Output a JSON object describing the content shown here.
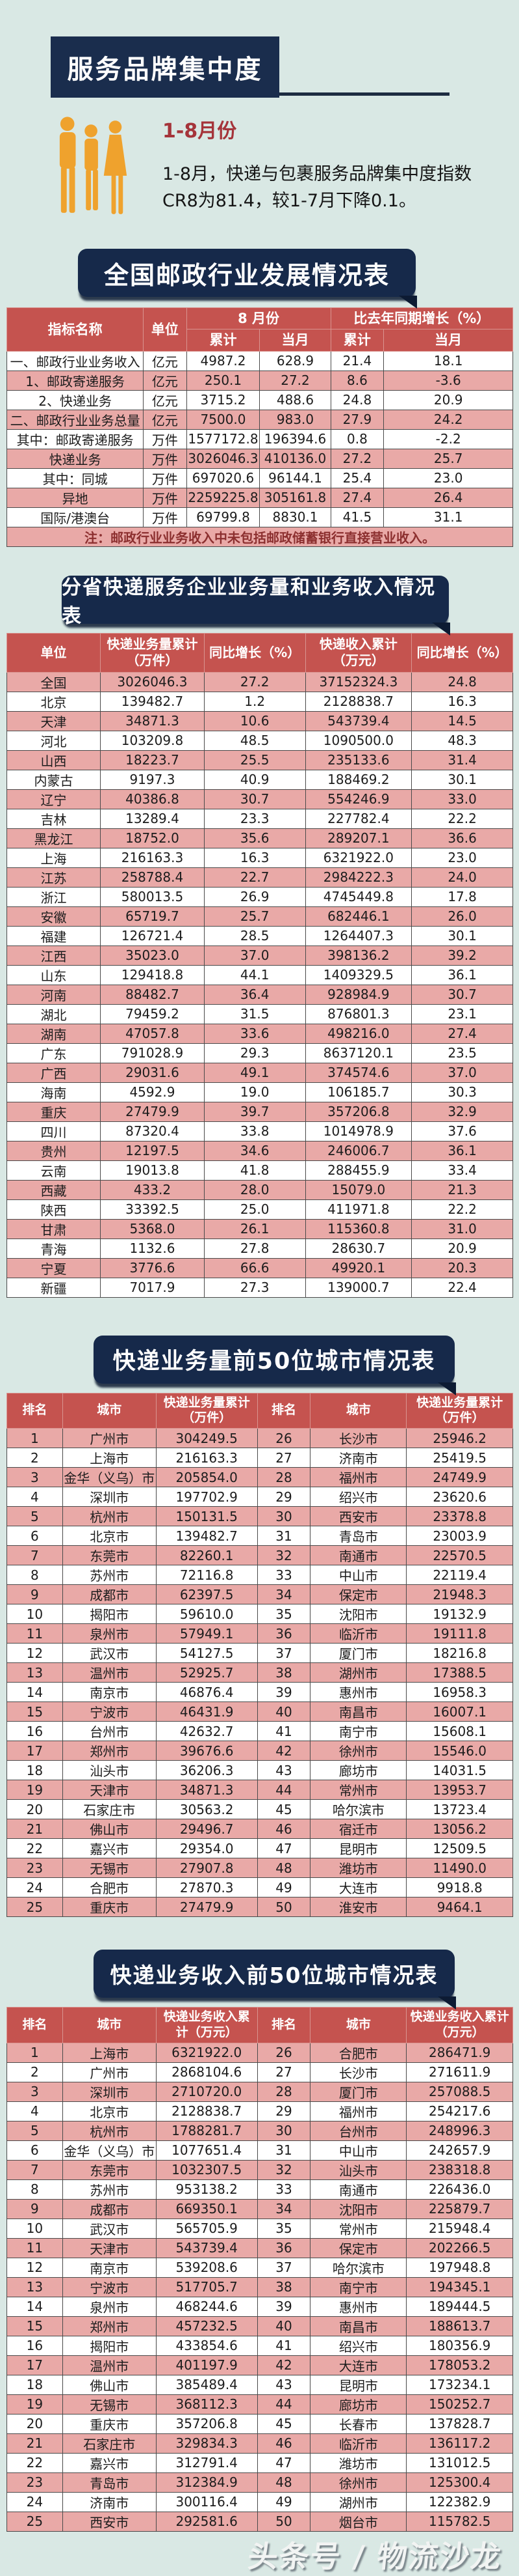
{
  "page": {
    "title": "服务品牌集中度",
    "watermark": "头条号 / 物流沙龙"
  },
  "intro": {
    "period_label": "1-8月份",
    "description": "1-8月，快递与包裹服务品牌集中度指数CR8为81.4，较1-7月下降0.1。"
  },
  "colors": {
    "background": "#d9e8e4",
    "navy": "#1a2d4d",
    "banner_navy": "#16294a",
    "table_header_red": "#c5534f",
    "row_pink": "#e9a9a7",
    "accent_orange": "#efa22d",
    "period_red": "#a5343a",
    "note_red": "#8c2f2f"
  },
  "national_table": {
    "title": "全国邮政行业发展情况表",
    "header": {
      "indicator": "指标名称",
      "unit": "单位",
      "august": "8 月份",
      "yoy": "比去年同期增长（%）",
      "cumulative": "累计",
      "month": "当月"
    },
    "rows": [
      [
        "一、邮政行业业务收入",
        "亿元",
        "4987.2",
        "628.9",
        "21.4",
        "18.1"
      ],
      [
        "1、邮政寄递服务",
        "亿元",
        "250.1",
        "27.2",
        "8.6",
        "-3.6"
      ],
      [
        "2、快递业务",
        "亿元",
        "3715.2",
        "488.6",
        "24.8",
        "20.9"
      ],
      [
        "二、邮政行业业务总量",
        "亿元",
        "7500.0",
        "983.0",
        "27.9",
        "24.2"
      ],
      [
        "其中：邮政寄递服务",
        "万件",
        "1577172.8",
        "196394.6",
        "0.8",
        "-2.2"
      ],
      [
        "快递业务",
        "万件",
        "3026046.3",
        "410136.0",
        "27.2",
        "25.7"
      ],
      [
        "其中：同城",
        "万件",
        "697020.6",
        "96144.1",
        "25.4",
        "23.0"
      ],
      [
        "异地",
        "万件",
        "2259225.8",
        "305161.8",
        "27.4",
        "26.4"
      ],
      [
        "国际/港澳台",
        "万件",
        "69799.8",
        "8830.1",
        "41.5",
        "31.1"
      ]
    ],
    "note": "注：邮政行业业务收入中未包括邮政储蓄银行直接营业收入。"
  },
  "province_table": {
    "title": "分省快递服务企业业务量和业务收入情况表",
    "header": [
      "单位",
      "快递业务量累计（万件）",
      "同比增长（%）",
      "快递收入累计（万元）",
      "同比增长（%）"
    ],
    "rows": [
      [
        "全国",
        "3026046.3",
        "27.2",
        "37152324.3",
        "24.8"
      ],
      [
        "北京",
        "139482.7",
        "1.2",
        "2128838.7",
        "16.3"
      ],
      [
        "天津",
        "34871.3",
        "10.6",
        "543739.4",
        "14.5"
      ],
      [
        "河北",
        "103209.8",
        "48.5",
        "1090500.0",
        "48.3"
      ],
      [
        "山西",
        "18223.7",
        "25.5",
        "235133.6",
        "31.4"
      ],
      [
        "内蒙古",
        "9197.3",
        "40.9",
        "188469.2",
        "30.1"
      ],
      [
        "辽宁",
        "40386.8",
        "30.7",
        "554246.9",
        "33.0"
      ],
      [
        "吉林",
        "13289.4",
        "23.3",
        "227782.4",
        "22.2"
      ],
      [
        "黑龙江",
        "18752.0",
        "35.6",
        "289207.1",
        "36.6"
      ],
      [
        "上海",
        "216163.3",
        "16.3",
        "6321922.0",
        "23.0"
      ],
      [
        "江苏",
        "258788.4",
        "22.7",
        "2984222.3",
        "24.0"
      ],
      [
        "浙江",
        "580013.5",
        "26.9",
        "4745449.8",
        "17.8"
      ],
      [
        "安徽",
        "65719.7",
        "25.7",
        "682446.1",
        "26.0"
      ],
      [
        "福建",
        "126721.4",
        "28.5",
        "1264407.3",
        "30.1"
      ],
      [
        "江西",
        "35023.0",
        "37.0",
        "398136.2",
        "39.2"
      ],
      [
        "山东",
        "129418.8",
        "44.1",
        "1409329.5",
        "36.1"
      ],
      [
        "河南",
        "88482.7",
        "36.4",
        "928984.9",
        "30.7"
      ],
      [
        "湖北",
        "79459.2",
        "31.5",
        "876801.3",
        "23.1"
      ],
      [
        "湖南",
        "47057.8",
        "33.6",
        "498216.0",
        "27.4"
      ],
      [
        "广东",
        "791028.9",
        "29.3",
        "8637120.1",
        "23.5"
      ],
      [
        "广西",
        "29031.6",
        "49.1",
        "374574.6",
        "37.0"
      ],
      [
        "海南",
        "4592.9",
        "19.0",
        "106185.7",
        "30.3"
      ],
      [
        "重庆",
        "27479.9",
        "39.7",
        "357206.8",
        "32.9"
      ],
      [
        "四川",
        "87320.4",
        "33.8",
        "1014978.9",
        "37.6"
      ],
      [
        "贵州",
        "12197.5",
        "34.6",
        "246006.7",
        "36.1"
      ],
      [
        "云南",
        "19013.8",
        "41.8",
        "288455.9",
        "33.4"
      ],
      [
        "西藏",
        "433.2",
        "28.0",
        "15079.0",
        "21.3"
      ],
      [
        "陕西",
        "33392.5",
        "25.0",
        "411971.8",
        "22.2"
      ],
      [
        "甘肃",
        "5368.0",
        "26.1",
        "115360.8",
        "31.0"
      ],
      [
        "青海",
        "1132.6",
        "27.8",
        "28630.7",
        "20.9"
      ],
      [
        "宁夏",
        "3776.6",
        "66.6",
        "49920.1",
        "20.3"
      ],
      [
        "新疆",
        "7017.9",
        "27.3",
        "139000.7",
        "22.4"
      ]
    ]
  },
  "volume_table": {
    "title": "快递业务量前50位城市情况表",
    "header": [
      "排名",
      "城市",
      "快递业务量累计（万件）",
      "排名",
      "城市",
      "快递业务量累计（万件）"
    ],
    "rows": [
      [
        "1",
        "广州市",
        "304249.5",
        "26",
        "长沙市",
        "25946.2"
      ],
      [
        "2",
        "上海市",
        "216163.3",
        "27",
        "济南市",
        "25419.5"
      ],
      [
        "3",
        "金华（义乌）市",
        "205854.0",
        "28",
        "福州市",
        "24749.9"
      ],
      [
        "4",
        "深圳市",
        "197702.9",
        "29",
        "绍兴市",
        "23620.6"
      ],
      [
        "5",
        "杭州市",
        "150131.5",
        "30",
        "西安市",
        "23378.8"
      ],
      [
        "6",
        "北京市",
        "139482.7",
        "31",
        "青岛市",
        "23003.9"
      ],
      [
        "7",
        "东莞市",
        "82260.1",
        "32",
        "南通市",
        "22570.5"
      ],
      [
        "8",
        "苏州市",
        "72116.8",
        "33",
        "中山市",
        "22119.4"
      ],
      [
        "9",
        "成都市",
        "62397.5",
        "34",
        "保定市",
        "21948.3"
      ],
      [
        "10",
        "揭阳市",
        "59610.0",
        "35",
        "沈阳市",
        "19132.9"
      ],
      [
        "11",
        "泉州市",
        "57949.1",
        "36",
        "临沂市",
        "19111.8"
      ],
      [
        "12",
        "武汉市",
        "54127.5",
        "37",
        "厦门市",
        "18216.8"
      ],
      [
        "13",
        "温州市",
        "52925.7",
        "38",
        "湖州市",
        "17388.5"
      ],
      [
        "14",
        "南京市",
        "46876.4",
        "39",
        "惠州市",
        "16958.3"
      ],
      [
        "15",
        "宁波市",
        "46431.9",
        "40",
        "南昌市",
        "16007.1"
      ],
      [
        "16",
        "台州市",
        "42632.7",
        "41",
        "南宁市",
        "15608.1"
      ],
      [
        "17",
        "郑州市",
        "39676.6",
        "42",
        "徐州市",
        "15546.0"
      ],
      [
        "18",
        "汕头市",
        "36206.3",
        "43",
        "廊坊市",
        "14031.5"
      ],
      [
        "19",
        "天津市",
        "34871.3",
        "44",
        "常州市",
        "13953.7"
      ],
      [
        "20",
        "石家庄市",
        "30563.2",
        "45",
        "哈尔滨市",
        "13723.4"
      ],
      [
        "21",
        "佛山市",
        "29496.7",
        "46",
        "宿迁市",
        "13056.2"
      ],
      [
        "22",
        "嘉兴市",
        "29354.0",
        "47",
        "昆明市",
        "12509.5"
      ],
      [
        "23",
        "无锡市",
        "27907.8",
        "48",
        "潍坊市",
        "11490.0"
      ],
      [
        "24",
        "合肥市",
        "27870.3",
        "49",
        "大连市",
        "9918.8"
      ],
      [
        "25",
        "重庆市",
        "27479.9",
        "50",
        "淮安市",
        "9464.1"
      ]
    ]
  },
  "revenue_table": {
    "title": "快递业务收入前50位城市情况表",
    "header": [
      "排名",
      "城市",
      "快递业务收入累计（万元）",
      "排名",
      "城市",
      "快递业务收入累计（万元）"
    ],
    "rows": [
      [
        "1",
        "上海市",
        "6321922.0",
        "26",
        "合肥市",
        "286471.9"
      ],
      [
        "2",
        "广州市",
        "2868104.6",
        "27",
        "长沙市",
        "271611.9"
      ],
      [
        "3",
        "深圳市",
        "2710720.0",
        "28",
        "厦门市",
        "257088.5"
      ],
      [
        "4",
        "北京市",
        "2128838.7",
        "29",
        "福州市",
        "254217.6"
      ],
      [
        "5",
        "杭州市",
        "1788281.7",
        "30",
        "台州市",
        "248996.3"
      ],
      [
        "6",
        "金华（义乌）市",
        "1077651.4",
        "31",
        "中山市",
        "242657.9"
      ],
      [
        "7",
        "东莞市",
        "1032307.5",
        "32",
        "汕头市",
        "238318.8"
      ],
      [
        "8",
        "苏州市",
        "953138.2",
        "33",
        "南通市",
        "226436.0"
      ],
      [
        "9",
        "成都市",
        "669350.1",
        "34",
        "沈阳市",
        "225879.7"
      ],
      [
        "10",
        "武汉市",
        "565705.9",
        "35",
        "常州市",
        "215948.4"
      ],
      [
        "11",
        "天津市",
        "543739.4",
        "36",
        "保定市",
        "202266.5"
      ],
      [
        "12",
        "南京市",
        "539208.6",
        "37",
        "哈尔滨市",
        "197948.8"
      ],
      [
        "13",
        "宁波市",
        "517705.7",
        "38",
        "南宁市",
        "194345.1"
      ],
      [
        "14",
        "泉州市",
        "468244.6",
        "39",
        "惠州市",
        "189444.5"
      ],
      [
        "15",
        "郑州市",
        "457232.5",
        "40",
        "南昌市",
        "188613.7"
      ],
      [
        "16",
        "揭阳市",
        "433854.6",
        "41",
        "绍兴市",
        "180356.9"
      ],
      [
        "17",
        "温州市",
        "401197.9",
        "42",
        "大连市",
        "178053.2"
      ],
      [
        "18",
        "佛山市",
        "385489.4",
        "43",
        "昆明市",
        "173234.1"
      ],
      [
        "19",
        "无锡市",
        "368112.3",
        "44",
        "廊坊市",
        "150252.7"
      ],
      [
        "20",
        "重庆市",
        "357206.8",
        "45",
        "长春市",
        "137828.7"
      ],
      [
        "21",
        "石家庄市",
        "329834.3",
        "46",
        "临沂市",
        "136117.2"
      ],
      [
        "22",
        "嘉兴市",
        "312791.4",
        "47",
        "潍坊市",
        "131012.5"
      ],
      [
        "23",
        "青岛市",
        "312384.9",
        "48",
        "徐州市",
        "125300.4"
      ],
      [
        "24",
        "济南市",
        "300116.4",
        "49",
        "湖州市",
        "122382.9"
      ],
      [
        "25",
        "西安市",
        "292581.6",
        "50",
        "烟台市",
        "115782.5"
      ]
    ]
  }
}
